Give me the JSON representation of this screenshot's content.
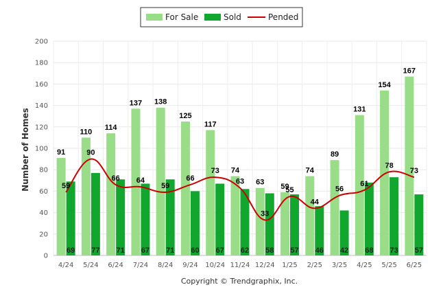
{
  "chart_data": {
    "type": "bar",
    "categories": [
      "4/24",
      "5/24",
      "6/24",
      "7/24",
      "8/24",
      "9/24",
      "10/24",
      "11/24",
      "12/24",
      "1/25",
      "2/25",
      "3/25",
      "4/25",
      "5/25",
      "6/25"
    ],
    "series": [
      {
        "name": "For Sale",
        "type": "bar",
        "color": "#99dd88",
        "values": [
          91,
          110,
          114,
          137,
          138,
          125,
          117,
          74,
          63,
          59,
          74,
          89,
          131,
          154,
          167
        ]
      },
      {
        "name": "Sold",
        "type": "bar",
        "color": "#11a62e",
        "values": [
          69,
          77,
          71,
          67,
          71,
          60,
          67,
          62,
          58,
          57,
          46,
          42,
          68,
          73,
          57
        ]
      },
      {
        "name": "Pended",
        "type": "line",
        "color": "#cc0000",
        "values": [
          59,
          90,
          66,
          64,
          59,
          66,
          73,
          63,
          33,
          55,
          44,
          56,
          61,
          78,
          73
        ]
      }
    ],
    "title": "",
    "xlabel": "",
    "ylabel": "Number of Homes",
    "ylim": [
      0,
      200
    ],
    "yticks": [
      0,
      20,
      40,
      60,
      80,
      100,
      120,
      140,
      160,
      180,
      200
    ],
    "grid": true,
    "legend": "top-center"
  },
  "footer": "Copyright © Trendgraphix, Inc."
}
